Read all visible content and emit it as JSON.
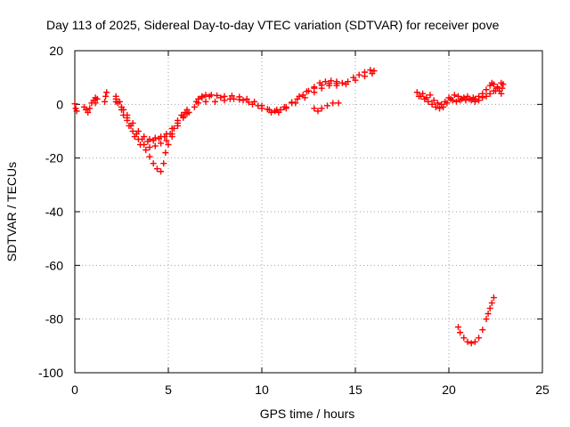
{
  "chart_data": {
    "type": "scatter",
    "title": "Day 113 of 2025, Sidereal Day-to-day VTEC variation (SDTVAR) for receiver pove",
    "xlabel": "GPS time / hours",
    "ylabel": "SDTVAR / TECUs",
    "xlim": [
      0,
      25
    ],
    "ylim": [
      -100,
      20
    ],
    "xticks": [
      "0",
      "5",
      "10",
      "15",
      "20",
      "25"
    ],
    "yticks": [
      "20",
      "0",
      "-20",
      "-40",
      "-60",
      "-80",
      "-100"
    ],
    "grid": true,
    "marker": "plus",
    "color": "#ff0000",
    "series": [
      {
        "name": "early-arcs",
        "points": [
          [
            0.0,
            0.2
          ],
          [
            0.05,
            -1.5
          ],
          [
            0.1,
            -2.5
          ],
          [
            0.5,
            -1.0
          ],
          [
            0.6,
            -2.0
          ],
          [
            0.7,
            -3.0
          ],
          [
            0.8,
            -1.5
          ],
          [
            0.9,
            0.5
          ],
          [
            1.0,
            1.5
          ],
          [
            1.1,
            2.5
          ],
          [
            1.2,
            2.0
          ],
          [
            1.1,
            0.5
          ],
          [
            1.6,
            1.0
          ],
          [
            1.65,
            3.0
          ],
          [
            1.7,
            4.5
          ]
        ]
      },
      {
        "name": "arc-a",
        "points": [
          [
            2.2,
            3.0
          ],
          [
            2.4,
            1.0
          ],
          [
            2.6,
            -2.0
          ],
          [
            2.8,
            -5.0
          ],
          [
            3.0,
            -8.0
          ],
          [
            3.3,
            -11.0
          ],
          [
            3.6,
            -13.0
          ],
          [
            3.9,
            -13.8
          ],
          [
            4.2,
            -13.5
          ],
          [
            4.5,
            -12.8
          ],
          [
            4.8,
            -12.0
          ],
          [
            5.1,
            -11.0
          ],
          [
            5.3,
            -9.0
          ],
          [
            5.5,
            -6.0
          ],
          [
            5.7,
            -4.0
          ],
          [
            5.9,
            -3.0
          ],
          [
            6.0,
            -2.0
          ]
        ]
      },
      {
        "name": "arc-b",
        "points": [
          [
            2.2,
            1.0
          ],
          [
            2.5,
            -2.0
          ],
          [
            2.8,
            -6.0
          ],
          [
            3.1,
            -10.0
          ],
          [
            3.4,
            -13.0
          ],
          [
            3.7,
            -15.0
          ],
          [
            4.0,
            -16.0
          ],
          [
            4.3,
            -15.5
          ],
          [
            4.6,
            -14.5
          ],
          [
            4.9,
            -13.5
          ],
          [
            5.2,
            -11.0
          ],
          [
            5.5,
            -8.0
          ],
          [
            5.8,
            -5.0
          ],
          [
            6.0,
            -3.5
          ]
        ]
      },
      {
        "name": "arc-c",
        "points": [
          [
            2.3,
            0.5
          ],
          [
            2.6,
            -4.0
          ],
          [
            2.9,
            -8.0
          ],
          [
            3.2,
            -12.0
          ],
          [
            3.5,
            -15.0
          ],
          [
            3.8,
            -17.0
          ],
          [
            4.0,
            -19.5
          ],
          [
            4.2,
            -22.0
          ],
          [
            4.4,
            -24.0
          ],
          [
            4.6,
            -25.0
          ],
          [
            4.75,
            -22.0
          ],
          [
            4.85,
            -18.0
          ],
          [
            5.0,
            -15.0
          ],
          [
            5.2,
            -12.0
          ]
        ]
      },
      {
        "name": "arc-d",
        "points": [
          [
            2.2,
            2.0
          ],
          [
            2.5,
            -1.0
          ],
          [
            2.8,
            -4.0
          ],
          [
            3.1,
            -7.0
          ],
          [
            3.4,
            -10.0
          ],
          [
            3.7,
            -12.0
          ],
          [
            4.0,
            -13.0
          ],
          [
            4.3,
            -12.5
          ],
          [
            4.6,
            -12.0
          ],
          [
            4.9,
            -11.0
          ],
          [
            5.2,
            -9.0
          ],
          [
            5.5,
            -7.0
          ],
          [
            5.8,
            -4.5
          ],
          [
            6.1,
            -3.0
          ]
        ]
      },
      {
        "name": "arc-e",
        "points": [
          [
            6.4,
            -1.0
          ],
          [
            6.5,
            1.0
          ],
          [
            6.6,
            2.0
          ],
          [
            6.8,
            3.0
          ],
          [
            7.0,
            3.5
          ],
          [
            7.3,
            3.5
          ],
          [
            7.6,
            3.3
          ],
          [
            8.0,
            3.0
          ],
          [
            8.4,
            3.2
          ],
          [
            8.8,
            2.8
          ],
          [
            9.2,
            2.0
          ],
          [
            9.6,
            1.0
          ],
          [
            10.0,
            -0.5
          ],
          [
            10.4,
            -2.0
          ],
          [
            10.7,
            -2.5
          ],
          [
            11.0,
            -2.0
          ],
          [
            11.3,
            -1.0
          ],
          [
            11.6,
            0.5
          ],
          [
            11.9,
            2.0
          ],
          [
            12.2,
            3.5
          ],
          [
            12.5,
            5.0
          ],
          [
            12.8,
            6.5
          ],
          [
            13.1,
            8.0
          ],
          [
            13.4,
            8.5
          ],
          [
            13.7,
            8.8
          ],
          [
            14.0,
            8.5
          ],
          [
            14.3,
            8.0
          ],
          [
            14.6,
            8.5
          ],
          [
            14.9,
            10.0
          ],
          [
            15.2,
            11.0
          ],
          [
            15.5,
            12.0
          ],
          [
            15.8,
            12.8
          ],
          [
            16.0,
            12.5
          ]
        ]
      },
      {
        "name": "arc-f",
        "points": [
          [
            6.6,
            0.5
          ],
          [
            7.0,
            1.0
          ],
          [
            7.5,
            1.0
          ],
          [
            8.0,
            1.5
          ],
          [
            8.5,
            2.0
          ],
          [
            9.0,
            1.5
          ],
          [
            9.5,
            0.0
          ],
          [
            10.0,
            -1.5
          ],
          [
            10.5,
            -3.0
          ],
          [
            10.9,
            -3.0
          ],
          [
            11.3,
            -1.5
          ],
          [
            11.8,
            0.5
          ],
          [
            12.3,
            2.5
          ],
          [
            12.8,
            4.5
          ],
          [
            13.2,
            6.0
          ],
          [
            13.6,
            7.0
          ],
          [
            14.0,
            7.0
          ],
          [
            14.5,
            7.5
          ],
          [
            15.0,
            9.0
          ],
          [
            15.5,
            10.5
          ],
          [
            15.9,
            11.5
          ]
        ]
      },
      {
        "name": "arc-g",
        "points": [
          [
            6.8,
            2.5
          ],
          [
            7.2,
            3.0
          ],
          [
            7.8,
            2.5
          ],
          [
            8.3,
            2.0
          ],
          [
            8.8,
            1.8
          ],
          [
            9.3,
            0.8
          ],
          [
            9.8,
            -0.5
          ],
          [
            10.3,
            -1.8
          ],
          [
            10.8,
            -2.0
          ],
          [
            11.2,
            -1.0
          ],
          [
            11.6,
            0.8
          ],
          [
            12.0,
            3.0
          ],
          [
            12.4,
            4.8
          ],
          [
            12.8,
            6.0
          ],
          [
            13.2,
            7.2
          ],
          [
            13.6,
            7.8
          ],
          [
            14.0,
            7.8
          ]
        ]
      },
      {
        "name": "arc-h",
        "points": [
          [
            12.8,
            -1.5
          ],
          [
            13.0,
            -2.5
          ],
          [
            13.2,
            -1.5
          ],
          [
            13.5,
            -0.5
          ],
          [
            13.8,
            0.5
          ],
          [
            14.1,
            0.5
          ]
        ]
      },
      {
        "name": "arc-i",
        "points": [
          [
            18.3,
            4.5
          ],
          [
            18.5,
            3.0
          ],
          [
            18.7,
            2.0
          ],
          [
            18.9,
            1.0
          ],
          [
            19.1,
            0.0
          ],
          [
            19.3,
            -1.0
          ],
          [
            19.5,
            -1.5
          ],
          [
            19.7,
            -1.0
          ],
          [
            19.9,
            0.5
          ],
          [
            20.1,
            2.0
          ],
          [
            20.3,
            3.5
          ],
          [
            20.5,
            3.0
          ],
          [
            20.7,
            2.0
          ],
          [
            20.9,
            1.5
          ],
          [
            21.1,
            2.0
          ],
          [
            21.3,
            2.5
          ]
        ]
      },
      {
        "name": "arc-j",
        "points": [
          [
            18.4,
            3.0
          ],
          [
            18.6,
            4.0
          ],
          [
            18.8,
            2.5
          ],
          [
            19.0,
            3.5
          ],
          [
            19.2,
            1.5
          ],
          [
            19.4,
            0.5
          ],
          [
            19.6,
            0.0
          ],
          [
            19.8,
            1.0
          ],
          [
            20.0,
            2.5
          ],
          [
            20.2,
            1.5
          ],
          [
            20.4,
            1.0
          ],
          [
            20.6,
            1.5
          ],
          [
            20.8,
            2.5
          ],
          [
            21.0,
            3.0
          ],
          [
            21.2,
            1.5
          ],
          [
            21.4,
            1.0
          ],
          [
            21.6,
            1.5
          ],
          [
            21.8,
            2.5
          ],
          [
            22.0,
            3.0
          ],
          [
            22.2,
            4.0
          ],
          [
            22.4,
            5.0
          ],
          [
            22.6,
            6.5
          ],
          [
            22.8,
            8.0
          ]
        ]
      },
      {
        "name": "arc-k",
        "points": [
          [
            21.4,
            2.0
          ],
          [
            21.6,
            3.0
          ],
          [
            21.8,
            4.0
          ],
          [
            22.0,
            5.5
          ],
          [
            22.2,
            7.0
          ],
          [
            22.4,
            7.5
          ],
          [
            22.6,
            6.0
          ],
          [
            22.7,
            5.0
          ],
          [
            22.8,
            4.0
          ],
          [
            22.85,
            6.0
          ],
          [
            22.9,
            7.5
          ],
          [
            22.3,
            8.0
          ],
          [
            22.5,
            5.0
          ]
        ]
      },
      {
        "name": "arc-l",
        "points": [
          [
            20.5,
            -83.0
          ],
          [
            20.6,
            -85.0
          ],
          [
            20.8,
            -87.0
          ],
          [
            21.0,
            -88.5
          ],
          [
            21.2,
            -89.0
          ],
          [
            21.4,
            -88.5
          ],
          [
            21.6,
            -87.0
          ],
          [
            21.8,
            -84.0
          ],
          [
            22.0,
            -80.0
          ],
          [
            22.1,
            -78.0
          ],
          [
            22.2,
            -76.0
          ],
          [
            22.3,
            -74.0
          ],
          [
            22.4,
            -72.0
          ]
        ]
      }
    ]
  }
}
